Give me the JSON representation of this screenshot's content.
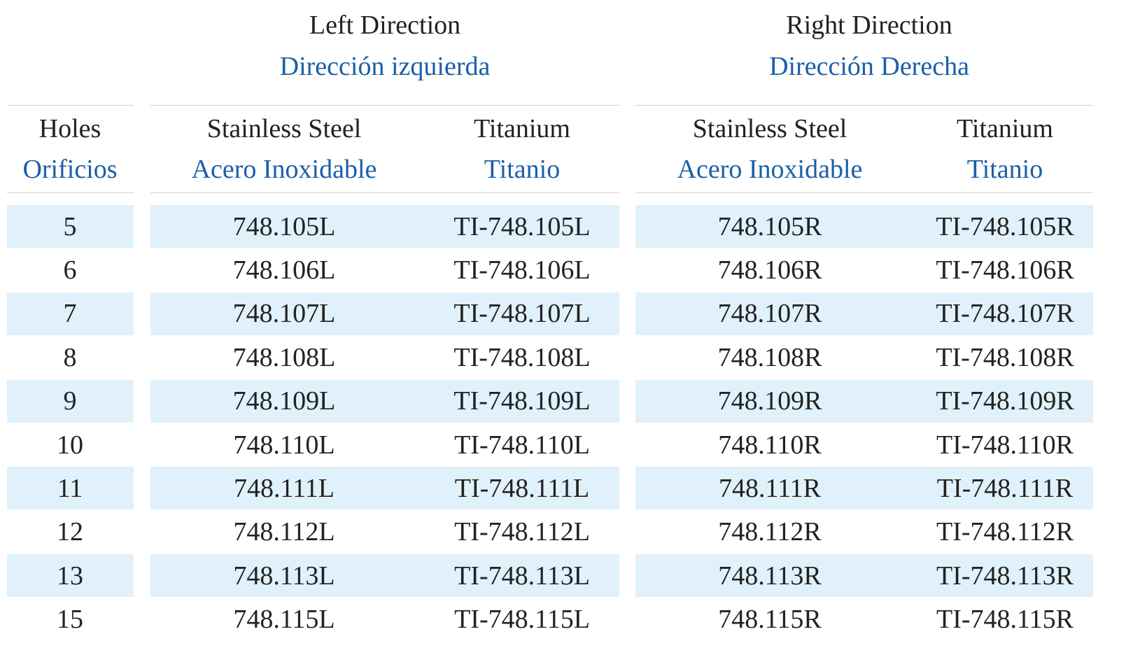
{
  "groups": [
    {
      "title": "Left Direction",
      "subtitle": "Dirección izquierda"
    },
    {
      "title": "Right Direction",
      "subtitle": "Dirección Derecha"
    }
  ],
  "columns": [
    {
      "title": "Holes",
      "subtitle": "Orificios"
    },
    {
      "title": "Stainless Steel",
      "subtitle": "Acero Inoxidable"
    },
    {
      "title": "Titanium",
      "subtitle": "Titanio"
    },
    {
      "title": "Stainless Steel",
      "subtitle": "Acero Inoxidable"
    },
    {
      "title": "Titanium",
      "subtitle": "Titanio"
    }
  ],
  "rows": [
    [
      "5",
      "748.105L",
      "TI-748.105L",
      "748.105R",
      "TI-748.105R"
    ],
    [
      "6",
      "748.106L",
      "TI-748.106L",
      "748.106R",
      "TI-748.106R"
    ],
    [
      "7",
      "748.107L",
      "TI-748.107L",
      "748.107R",
      "TI-748.107R"
    ],
    [
      "8",
      "748.108L",
      "TI-748.108L",
      "748.108R",
      "TI-748.108R"
    ],
    [
      "9",
      "748.109L",
      "TI-748.109L",
      "748.109R",
      "TI-748.109R"
    ],
    [
      "10",
      "748.110L",
      "TI-748.110L",
      "748.110R",
      "TI-748.110R"
    ],
    [
      "11",
      "748.111L",
      "TI-748.111L",
      "748.111R",
      "TI-748.111R"
    ],
    [
      "12",
      "748.112L",
      "TI-748.112L",
      "748.112R",
      "TI-748.112R"
    ],
    [
      "13",
      "748.113L",
      "TI-748.113L",
      "748.113R",
      "TI-748.113R"
    ],
    [
      "15",
      "748.115L",
      "TI-748.115L",
      "748.115R",
      "TI-748.115R"
    ]
  ]
}
